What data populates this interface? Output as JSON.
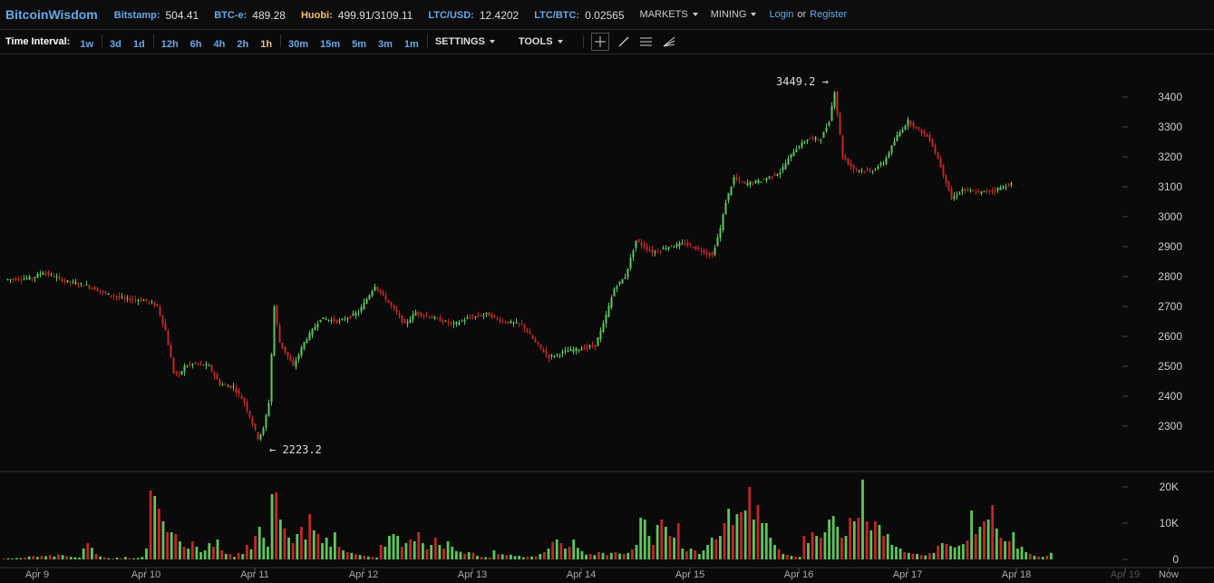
{
  "header": {
    "logo": "BitcoinWisdom",
    "tickers": [
      {
        "label": "Bitstamp:",
        "value": "504.41",
        "color": "#6aa8e8"
      },
      {
        "label": "BTC-e:",
        "value": "489.28",
        "color": "#6aa8e8"
      },
      {
        "label": "Huobi:",
        "value": "499.91/3109.11",
        "color": "#f0c080"
      },
      {
        "label": "LTC/USD:",
        "value": "12.4202",
        "color": "#6aa8e8"
      },
      {
        "label": "LTC/BTC:",
        "value": "0.02565",
        "color": "#6aa8e8"
      }
    ],
    "menus": [
      "MARKETS",
      "MINING"
    ],
    "login": "Login",
    "or": "or",
    "register": "Register"
  },
  "toolbar": {
    "label": "Time Interval:",
    "groups": [
      [
        "1w"
      ],
      [
        "3d",
        "1d"
      ],
      [
        "12h",
        "6h",
        "4h",
        "2h",
        "1h"
      ],
      [
        "30m",
        "15m",
        "5m",
        "3m",
        "1m"
      ]
    ],
    "active": "1h",
    "settings": "SETTINGS",
    "tools": "TOOLS",
    "tool_icons": [
      "crosshair-icon",
      "line-draw-icon",
      "parallel-lines-icon",
      "fan-icon"
    ]
  },
  "chart_data": {
    "type": "candlestick",
    "up_color": "#5ec65e",
    "down_color": "#c0282a",
    "ylim": [
      2200,
      3470
    ],
    "yticks": [
      2300,
      2400,
      2500,
      2600,
      2700,
      2800,
      2900,
      3000,
      3100,
      3200,
      3300,
      3400
    ],
    "vol_yticks": [
      "20K",
      "10K",
      "0"
    ],
    "x_labels": [
      "Apr 9",
      "Apr 10",
      "Apr 11",
      "Apr 12",
      "Apr 13",
      "Apr 14",
      "Apr 15",
      "Apr 16",
      "Apr 17",
      "Apr 18",
      "Apr 19",
      "Now"
    ],
    "max_label": "3449.2",
    "min_label": "2223.2",
    "key_points": [
      [
        0,
        2790
      ],
      [
        10,
        2795
      ],
      [
        14,
        2815
      ],
      [
        22,
        2785
      ],
      [
        30,
        2770
      ],
      [
        38,
        2740
      ],
      [
        44,
        2725
      ],
      [
        52,
        2720
      ],
      [
        56,
        2700
      ],
      [
        59,
        2620
      ],
      [
        62,
        2480
      ],
      [
        64,
        2470
      ],
      [
        66,
        2500
      ],
      [
        70,
        2510
      ],
      [
        75,
        2500
      ],
      [
        79,
        2440
      ],
      [
        84,
        2430
      ],
      [
        88,
        2380
      ],
      [
        93,
        2260
      ],
      [
        95,
        2290
      ],
      [
        97,
        2380
      ],
      [
        99,
        2700
      ],
      [
        101,
        2580
      ],
      [
        106,
        2500
      ],
      [
        110,
        2580
      ],
      [
        116,
        2660
      ],
      [
        123,
        2650
      ],
      [
        130,
        2680
      ],
      [
        136,
        2770
      ],
      [
        143,
        2690
      ],
      [
        147,
        2640
      ],
      [
        151,
        2680
      ],
      [
        158,
        2660
      ],
      [
        165,
        2640
      ],
      [
        170,
        2660
      ],
      [
        177,
        2675
      ],
      [
        183,
        2650
      ],
      [
        190,
        2640
      ],
      [
        195,
        2580
      ],
      [
        200,
        2530
      ],
      [
        206,
        2550
      ],
      [
        212,
        2560
      ],
      [
        217,
        2570
      ],
      [
        220,
        2640
      ],
      [
        224,
        2760
      ],
      [
        228,
        2800
      ],
      [
        232,
        2920
      ],
      [
        238,
        2880
      ],
      [
        244,
        2900
      ],
      [
        250,
        2910
      ],
      [
        255,
        2890
      ],
      [
        260,
        2870
      ],
      [
        263,
        2960
      ],
      [
        265,
        3050
      ],
      [
        268,
        3130
      ],
      [
        272,
        3110
      ],
      [
        278,
        3120
      ],
      [
        285,
        3150
      ],
      [
        290,
        3220
      ],
      [
        295,
        3260
      ],
      [
        300,
        3260
      ],
      [
        303,
        3320
      ],
      [
        305,
        3420
      ],
      [
        308,
        3200
      ],
      [
        312,
        3160
      ],
      [
        318,
        3150
      ],
      [
        323,
        3180
      ],
      [
        328,
        3270
      ],
      [
        332,
        3320
      ],
      [
        336,
        3290
      ],
      [
        340,
        3260
      ],
      [
        344,
        3170
      ],
      [
        348,
        3060
      ],
      [
        352,
        3090
      ],
      [
        358,
        3080
      ],
      [
        364,
        3090
      ],
      [
        370,
        3110
      ]
    ],
    "volume_series": [
      {
        "start": 0,
        "values": [
          250,
          300,
          250,
          400,
          350,
          500,
          800,
          900,
          700,
          1000,
          900,
          1200,
          800,
          1400,
          1200,
          900,
          700,
          600,
          500,
          3000,
          4500,
          3200,
          1500,
          800,
          600,
          350,
          250,
          500,
          300,
          700,
          400,
          300,
          400,
          700,
          3000,
          19000,
          17500,
          14000,
          10500,
          7500,
          7500,
          7000,
          5000,
          3500,
          3000,
          5000,
          3500,
          2000,
          2500,
          4500,
          3500,
          5500,
          2500,
          1500,
          1500,
          700,
          1800,
          1500,
          4000,
          2800,
          6500,
          9000,
          6000,
          3500,
          18000,
          18500,
          11000,
          8500,
          6000,
          4500,
          7000,
          9000,
          5500,
          12500,
          8000,
          7000,
          4500,
          6000,
          3500,
          7500,
          3500,
          2500,
          2000,
          1800,
          1400,
          1200,
          1000,
          800,
          700,
          500,
          4000,
          3500,
          6500,
          7000,
          6500,
          3500,
          4500,
          5500,
          5000,
          7500,
          4500,
          2800,
          4000,
          6000,
          4000,
          3000,
          5000,
          3500,
          2300,
          2100,
          1500,
          2000,
          1800,
          1000,
          700,
          600,
          550,
          2500,
          1400,
          1400,
          1200,
          1300,
          900,
          1000,
          600,
          700,
          800,
          900,
          1500,
          2000,
          3000,
          4800,
          5500,
          4500,
          3000,
          3500,
          5500,
          3200,
          2300,
          1300,
          1500,
          1200,
          2000,
          1800,
          1200,
          1800,
          2000,
          1600,
          1500,
          1800,
          2800,
          4000,
          11500,
          11000,
          6500,
          4000,
          9500,
          11000,
          9000,
          6500,
          6000,
          10000,
          3000,
          2200,
          3000,
          2500,
          1500,
          2500,
          4000,
          6000,
          5500,
          6500,
          10000,
          14000,
          9500,
          12500,
          13000,
          13500,
          20000,
          11000,
          15000,
          10000,
          10000,
          6000,
          4000,
          2800,
          1500,
          1300,
          1000,
          800,
          700,
          6500,
          4500,
          7500,
          6500,
          6000,
          7500,
          11000,
          12000,
          9000,
          6000,
          6500,
          11500,
          10500,
          11500,
          22000,
          10500,
          8000,
          10500,
          9500,
          6500,
          7000,
          4000,
          3500,
          3000,
          2000,
          1800,
          1600,
          1500,
          1200,
          1100,
          1700,
          1800,
          3800,
          4500,
          4300,
          3700,
          3300,
          3800,
          4200,
          5200,
          13500,
          7000,
          9000,
          10500,
          11000,
          15000,
          8500,
          6000,
          5000,
          5000,
          7500,
          3000,
          3500,
          2000,
          1500,
          1000,
          800,
          700,
          1000,
          1800
        ]
      }
    ]
  }
}
